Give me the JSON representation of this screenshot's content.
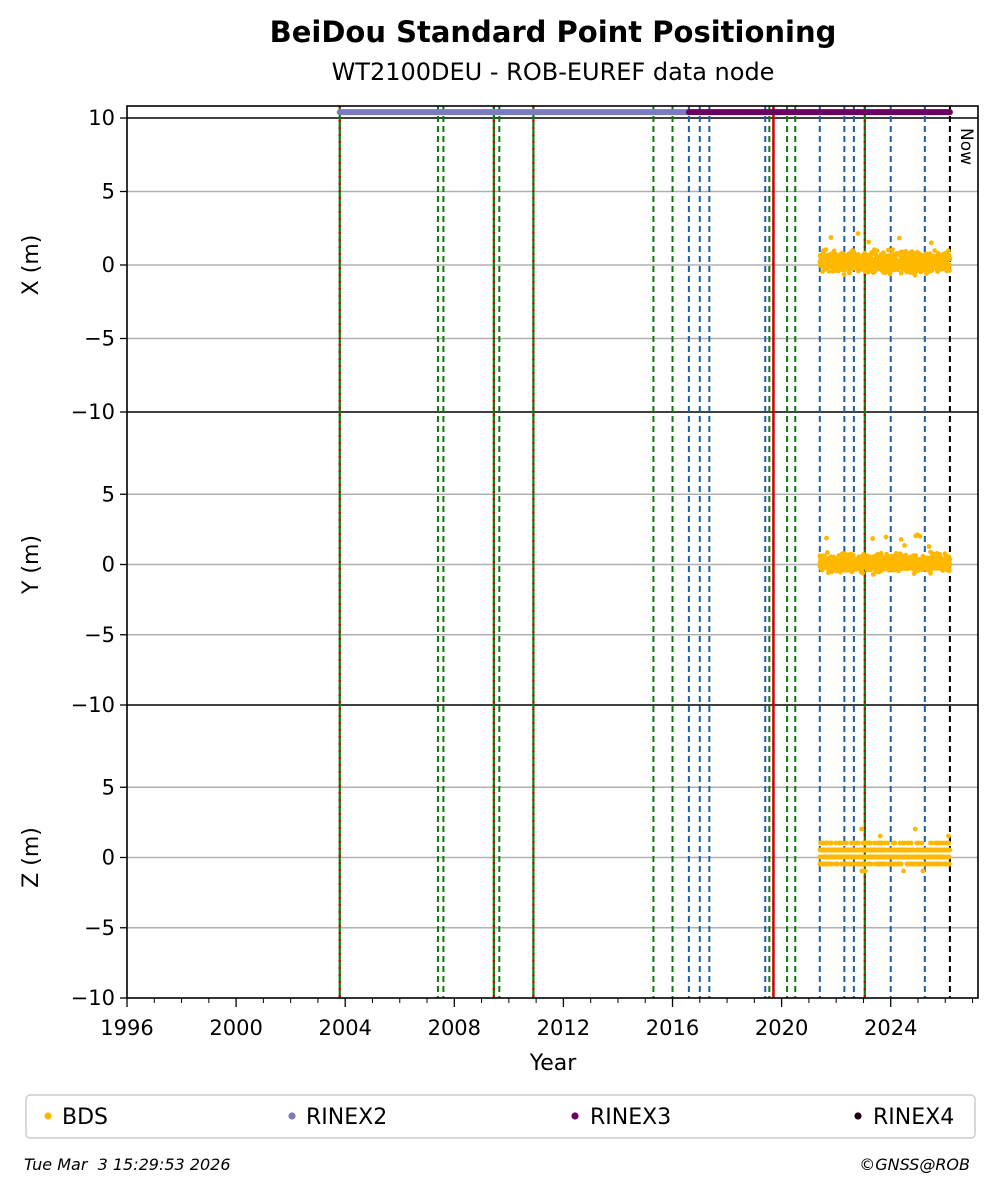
{
  "title": "BeiDou Standard Point Positioning",
  "subtitle": "WT2100DEU - ROB-EUREF data node",
  "footer_left": "Tue Mar  3 15:29:53 2026",
  "footer_right": "©GNSS@ROB",
  "now_label": "Now",
  "colors": {
    "BDS": "#ffb800",
    "RINEX2": "#7b7bbd",
    "RINEX3": "#6a0060",
    "RINEX4": "#1a0010",
    "antenna_change": "#1a5fa8",
    "receiver_change": "#0a7a0a",
    "both_change": "#cc0000",
    "now_line": "#000000",
    "grid": "#b0b0b0"
  },
  "chart_data": {
    "type": "scatter",
    "xlabel": "Year",
    "xlim": [
      1996,
      2027.2
    ],
    "xticks": [
      1996,
      2000,
      2004,
      2008,
      2012,
      2016,
      2020,
      2024
    ],
    "panels": [
      {
        "ylabel": "X (m)",
        "ylim": [
          -10,
          10
        ],
        "yticks": [
          10,
          5,
          0,
          -5,
          -10
        ],
        "tick_labels": [
          "10",
          "5",
          "0",
          "−5",
          "−10"
        ]
      },
      {
        "ylabel": "Y (m)",
        "ylim": [
          -10,
          10
        ],
        "yticks": [
          5,
          0,
          -5,
          -10
        ],
        "tick_labels": [
          "5",
          "0",
          "−5",
          "−10"
        ]
      },
      {
        "ylabel": "Z (m)",
        "ylim": [
          -10,
          10
        ],
        "yticks": [
          5,
          0,
          -5,
          -10
        ],
        "tick_labels": [
          "5",
          "0",
          "−5",
          "−10"
        ]
      }
    ],
    "series": [
      {
        "name": "BDS",
        "x_range": [
          2021.4,
          2026.17
        ],
        "x_scatter_spread": [
          0.9,
          0.8,
          1.1
        ],
        "y_center": [
          0.2,
          0.1,
          0.2
        ]
      },
      {
        "name": "RINEX2",
        "x_range": [
          2003.8,
          2016.6
        ],
        "y": 10.4
      },
      {
        "name": "RINEX3",
        "x_range": [
          2016.6,
          2026.17
        ],
        "y": 10.4
      },
      {
        "name": "RINEX4",
        "x_range": [],
        "y": 10.4
      }
    ],
    "event_lines": [
      {
        "x": 2003.8,
        "kind": "receiver_and_antenna"
      },
      {
        "x": 2007.4,
        "kind": "receiver"
      },
      {
        "x": 2007.6,
        "kind": "receiver"
      },
      {
        "x": 2009.45,
        "kind": "receiver_and_antenna"
      },
      {
        "x": 2009.65,
        "kind": "receiver"
      },
      {
        "x": 2010.9,
        "kind": "receiver_and_antenna"
      },
      {
        "x": 2015.3,
        "kind": "receiver"
      },
      {
        "x": 2016.0,
        "kind": "receiver"
      },
      {
        "x": 2016.6,
        "kind": "antenna"
      },
      {
        "x": 2017.0,
        "kind": "antenna"
      },
      {
        "x": 2017.35,
        "kind": "antenna"
      },
      {
        "x": 2019.4,
        "kind": "antenna"
      },
      {
        "x": 2019.55,
        "kind": "receiver"
      },
      {
        "x": 2019.7,
        "kind": "solid"
      },
      {
        "x": 2020.2,
        "kind": "receiver"
      },
      {
        "x": 2020.5,
        "kind": "receiver"
      },
      {
        "x": 2021.4,
        "kind": "antenna"
      },
      {
        "x": 2022.3,
        "kind": "antenna"
      },
      {
        "x": 2022.65,
        "kind": "antenna"
      },
      {
        "x": 2023.05,
        "kind": "receiver_and_antenna"
      },
      {
        "x": 2024.0,
        "kind": "antenna"
      },
      {
        "x": 2025.25,
        "kind": "antenna"
      },
      {
        "x": 2026.17,
        "kind": "now"
      }
    ]
  },
  "legend": [
    {
      "label": "BDS",
      "color_key": "BDS"
    },
    {
      "label": "RINEX2",
      "color_key": "RINEX2"
    },
    {
      "label": "RINEX3",
      "color_key": "RINEX3"
    },
    {
      "label": "RINEX4",
      "color_key": "RINEX4"
    }
  ]
}
